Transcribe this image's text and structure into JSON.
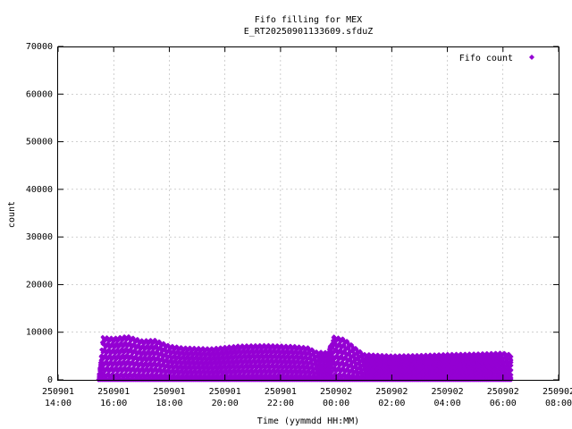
{
  "chart_data": {
    "type": "scatter",
    "title_line1": "Fifo filling for MEX",
    "title_line2": "E_RT20250901133609.sfduZ",
    "xlabel": "Time (yymmdd HH:MM)",
    "ylabel": "count",
    "legend": {
      "label": "Fifo count",
      "position": "top-right"
    },
    "grid": true,
    "point_color": "#9400d3",
    "xlim_hours": [
      14,
      32
    ],
    "ylim": [
      0,
      70000
    ],
    "y_ticks": [
      0,
      10000,
      20000,
      30000,
      40000,
      50000,
      60000,
      70000
    ],
    "x_ticks": [
      {
        "date": "250901",
        "time": "14:00",
        "hour": 14
      },
      {
        "date": "250901",
        "time": "16:00",
        "hour": 16
      },
      {
        "date": "250901",
        "time": "18:00",
        "hour": 18
      },
      {
        "date": "250901",
        "time": "20:00",
        "hour": 20
      },
      {
        "date": "250901",
        "time": "22:00",
        "hour": 22
      },
      {
        "date": "250902",
        "time": "00:00",
        "hour": 24
      },
      {
        "date": "250902",
        "time": "02:00",
        "hour": 26
      },
      {
        "date": "250902",
        "time": "04:00",
        "hour": 28
      },
      {
        "date": "250902",
        "time": "06:00",
        "hour": 30
      },
      {
        "date": "250902",
        "time": "08:00",
        "hour": 32
      }
    ],
    "series": [
      {
        "name": "Fifo count",
        "data_start_hour": 15.45,
        "data_end_hour": 30.3,
        "envelope_hour": [
          15.45,
          15.6,
          16.0,
          16.5,
          17.0,
          17.5,
          18.0,
          18.5,
          19.5,
          20.5,
          21.5,
          22.5,
          23.0,
          23.3,
          23.7,
          23.9,
          24.3,
          24.7,
          25.0,
          26.0,
          27.0,
          28.0,
          29.0,
          30.0,
          30.3
        ],
        "envelope_max": [
          0,
          9000,
          8800,
          9200,
          8300,
          8400,
          7200,
          6800,
          6600,
          7200,
          7300,
          7100,
          6800,
          5900,
          5800,
          9100,
          8600,
          6700,
          5400,
          5100,
          5200,
          5400,
          5500,
          5700,
          5300
        ]
      }
    ]
  }
}
